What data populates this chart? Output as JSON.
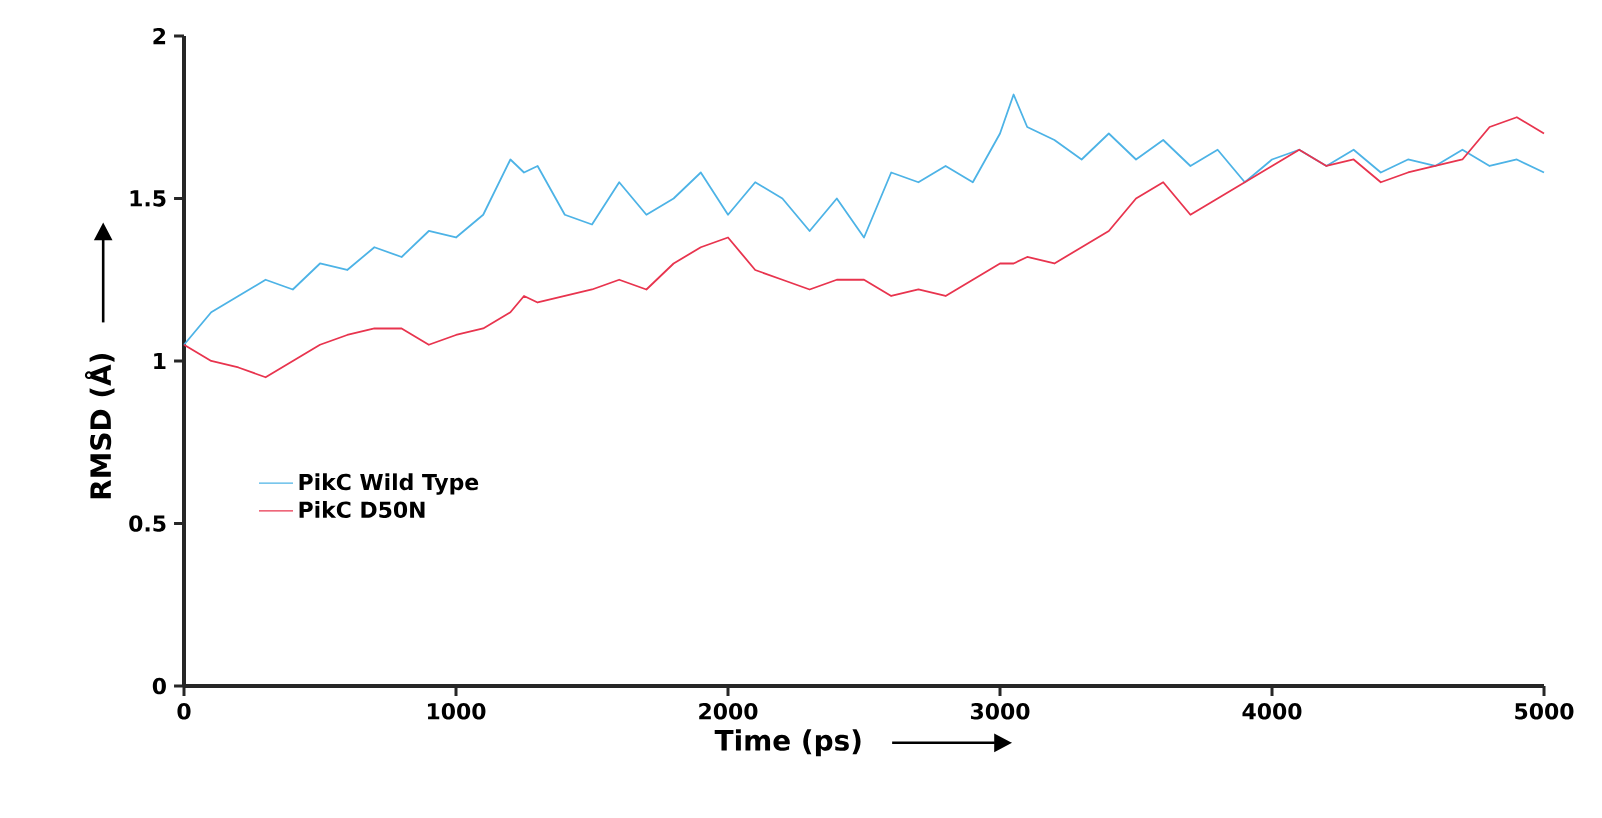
{
  "chart_data": {
    "type": "line",
    "xlabel": "Time (ps)",
    "ylabel": "RMSD (Å)",
    "x": [
      0,
      100,
      200,
      300,
      400,
      500,
      600,
      700,
      800,
      900,
      1000,
      1100,
      1200,
      1250,
      1300,
      1400,
      1500,
      1600,
      1700,
      1800,
      1900,
      2000,
      2100,
      2200,
      2300,
      2400,
      2500,
      2600,
      2700,
      2800,
      2900,
      3000,
      3050,
      3100,
      3200,
      3300,
      3400,
      3500,
      3600,
      3700,
      3800,
      3900,
      4000,
      4100,
      4200,
      4300,
      4400,
      4500,
      4600,
      4700,
      4800,
      4900,
      5000
    ],
    "series": [
      {
        "name": "PikC Wild Type",
        "color": "#4db3e6",
        "values": [
          1.05,
          1.15,
          1.2,
          1.25,
          1.22,
          1.3,
          1.28,
          1.35,
          1.32,
          1.4,
          1.38,
          1.45,
          1.62,
          1.58,
          1.6,
          1.45,
          1.42,
          1.55,
          1.45,
          1.5,
          1.58,
          1.45,
          1.55,
          1.5,
          1.4,
          1.5,
          1.38,
          1.58,
          1.55,
          1.6,
          1.55,
          1.7,
          1.82,
          1.72,
          1.68,
          1.62,
          1.7,
          1.62,
          1.68,
          1.6,
          1.65,
          1.55,
          1.62,
          1.65,
          1.6,
          1.65,
          1.58,
          1.62,
          1.6,
          1.65,
          1.6,
          1.62,
          1.58
        ]
      },
      {
        "name": "PikC D50N",
        "color": "#e8344e",
        "values": [
          1.05,
          1.0,
          0.98,
          0.95,
          1.0,
          1.05,
          1.08,
          1.1,
          1.1,
          1.05,
          1.08,
          1.1,
          1.15,
          1.2,
          1.18,
          1.2,
          1.22,
          1.25,
          1.22,
          1.3,
          1.35,
          1.38,
          1.28,
          1.25,
          1.22,
          1.25,
          1.25,
          1.2,
          1.22,
          1.2,
          1.25,
          1.3,
          1.3,
          1.32,
          1.3,
          1.35,
          1.4,
          1.5,
          1.55,
          1.45,
          1.5,
          1.55,
          1.6,
          1.65,
          1.6,
          1.62,
          1.55,
          1.58,
          1.6,
          1.62,
          1.72,
          1.75,
          1.7
        ]
      }
    ],
    "xlim": [
      0,
      5000
    ],
    "xticks": [
      0,
      1000,
      2000,
      3000,
      4000,
      5000
    ],
    "ylim": [
      0,
      2
    ],
    "yticks": [
      0,
      0.5,
      1,
      1.5,
      2
    ],
    "legend": "left",
    "grid": false,
    "marker": "none",
    "line_style": "solid"
  }
}
